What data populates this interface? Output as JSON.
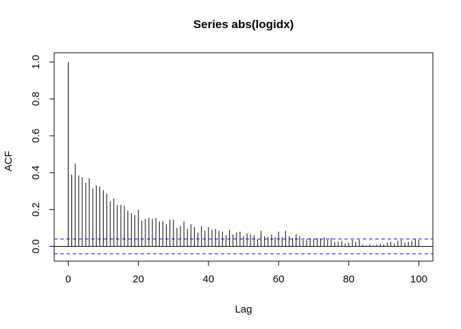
{
  "chart_data": {
    "type": "bar",
    "title": "Series  abs(logidx)",
    "xlabel": "Lag",
    "ylabel": "ACF",
    "xlim": [
      -4,
      104
    ],
    "ylim": [
      -0.08,
      1.05
    ],
    "x_ticks": [
      0,
      20,
      40,
      60,
      80,
      100
    ],
    "y_ticks": [
      0.0,
      0.2,
      0.4,
      0.6,
      0.8,
      1.0
    ],
    "x_tick_labels": [
      "0",
      "20",
      "40",
      "60",
      "80",
      "100"
    ],
    "y_tick_labels": [
      "0.0",
      "0.2",
      "0.4",
      "0.6",
      "0.8",
      "1.0"
    ],
    "grid": false,
    "zero_line": true,
    "confidence_band": {
      "upper": 0.04,
      "lower": -0.04,
      "color": "#0000ff",
      "style": "dashed"
    },
    "bar_color": "#000000",
    "lags": [
      0,
      1,
      2,
      3,
      4,
      5,
      6,
      7,
      8,
      9,
      10,
      11,
      12,
      13,
      14,
      15,
      16,
      17,
      18,
      19,
      20,
      21,
      22,
      23,
      24,
      25,
      26,
      27,
      28,
      29,
      30,
      31,
      32,
      33,
      34,
      35,
      36,
      37,
      38,
      39,
      40,
      41,
      42,
      43,
      44,
      45,
      46,
      47,
      48,
      49,
      50,
      51,
      52,
      53,
      54,
      55,
      56,
      57,
      58,
      59,
      60,
      61,
      62,
      63,
      64,
      65,
      66,
      67,
      68,
      69,
      70,
      71,
      72,
      73,
      74,
      75,
      76,
      77,
      78,
      79,
      80,
      81,
      82,
      83,
      84,
      85,
      86,
      87,
      88,
      89,
      90,
      91,
      92,
      93,
      94,
      95,
      96,
      97,
      98,
      99,
      100
    ],
    "acf": [
      1.0,
      0.39,
      0.45,
      0.385,
      0.375,
      0.345,
      0.37,
      0.315,
      0.33,
      0.325,
      0.305,
      0.285,
      0.245,
      0.26,
      0.225,
      0.225,
      0.22,
      0.195,
      0.18,
      0.17,
      0.2,
      0.14,
      0.15,
      0.155,
      0.15,
      0.155,
      0.135,
      0.135,
      0.12,
      0.145,
      0.145,
      0.1,
      0.11,
      0.135,
      0.095,
      0.12,
      0.105,
      0.075,
      0.11,
      0.085,
      0.105,
      0.09,
      0.095,
      0.085,
      0.08,
      0.06,
      0.09,
      0.065,
      0.075,
      0.08,
      0.055,
      0.07,
      0.065,
      0.06,
      0.04,
      0.085,
      0.055,
      0.05,
      0.065,
      0.05,
      0.08,
      0.05,
      0.085,
      0.055,
      0.045,
      0.065,
      0.055,
      0.035,
      0.04,
      0.045,
      0.04,
      0.045,
      0.04,
      0.05,
      0.035,
      0.045,
      0.025,
      0.025,
      0.03,
      0.015,
      0.02,
      0.035,
      0.025,
      0.035,
      0.01,
      0.005,
      0.01,
      0.005,
      0.01,
      0.015,
      0.01,
      0.02,
      0.025,
      0.015,
      0.03,
      0.035,
      0.02,
      0.025,
      0.03,
      0.04,
      0.035
    ]
  }
}
